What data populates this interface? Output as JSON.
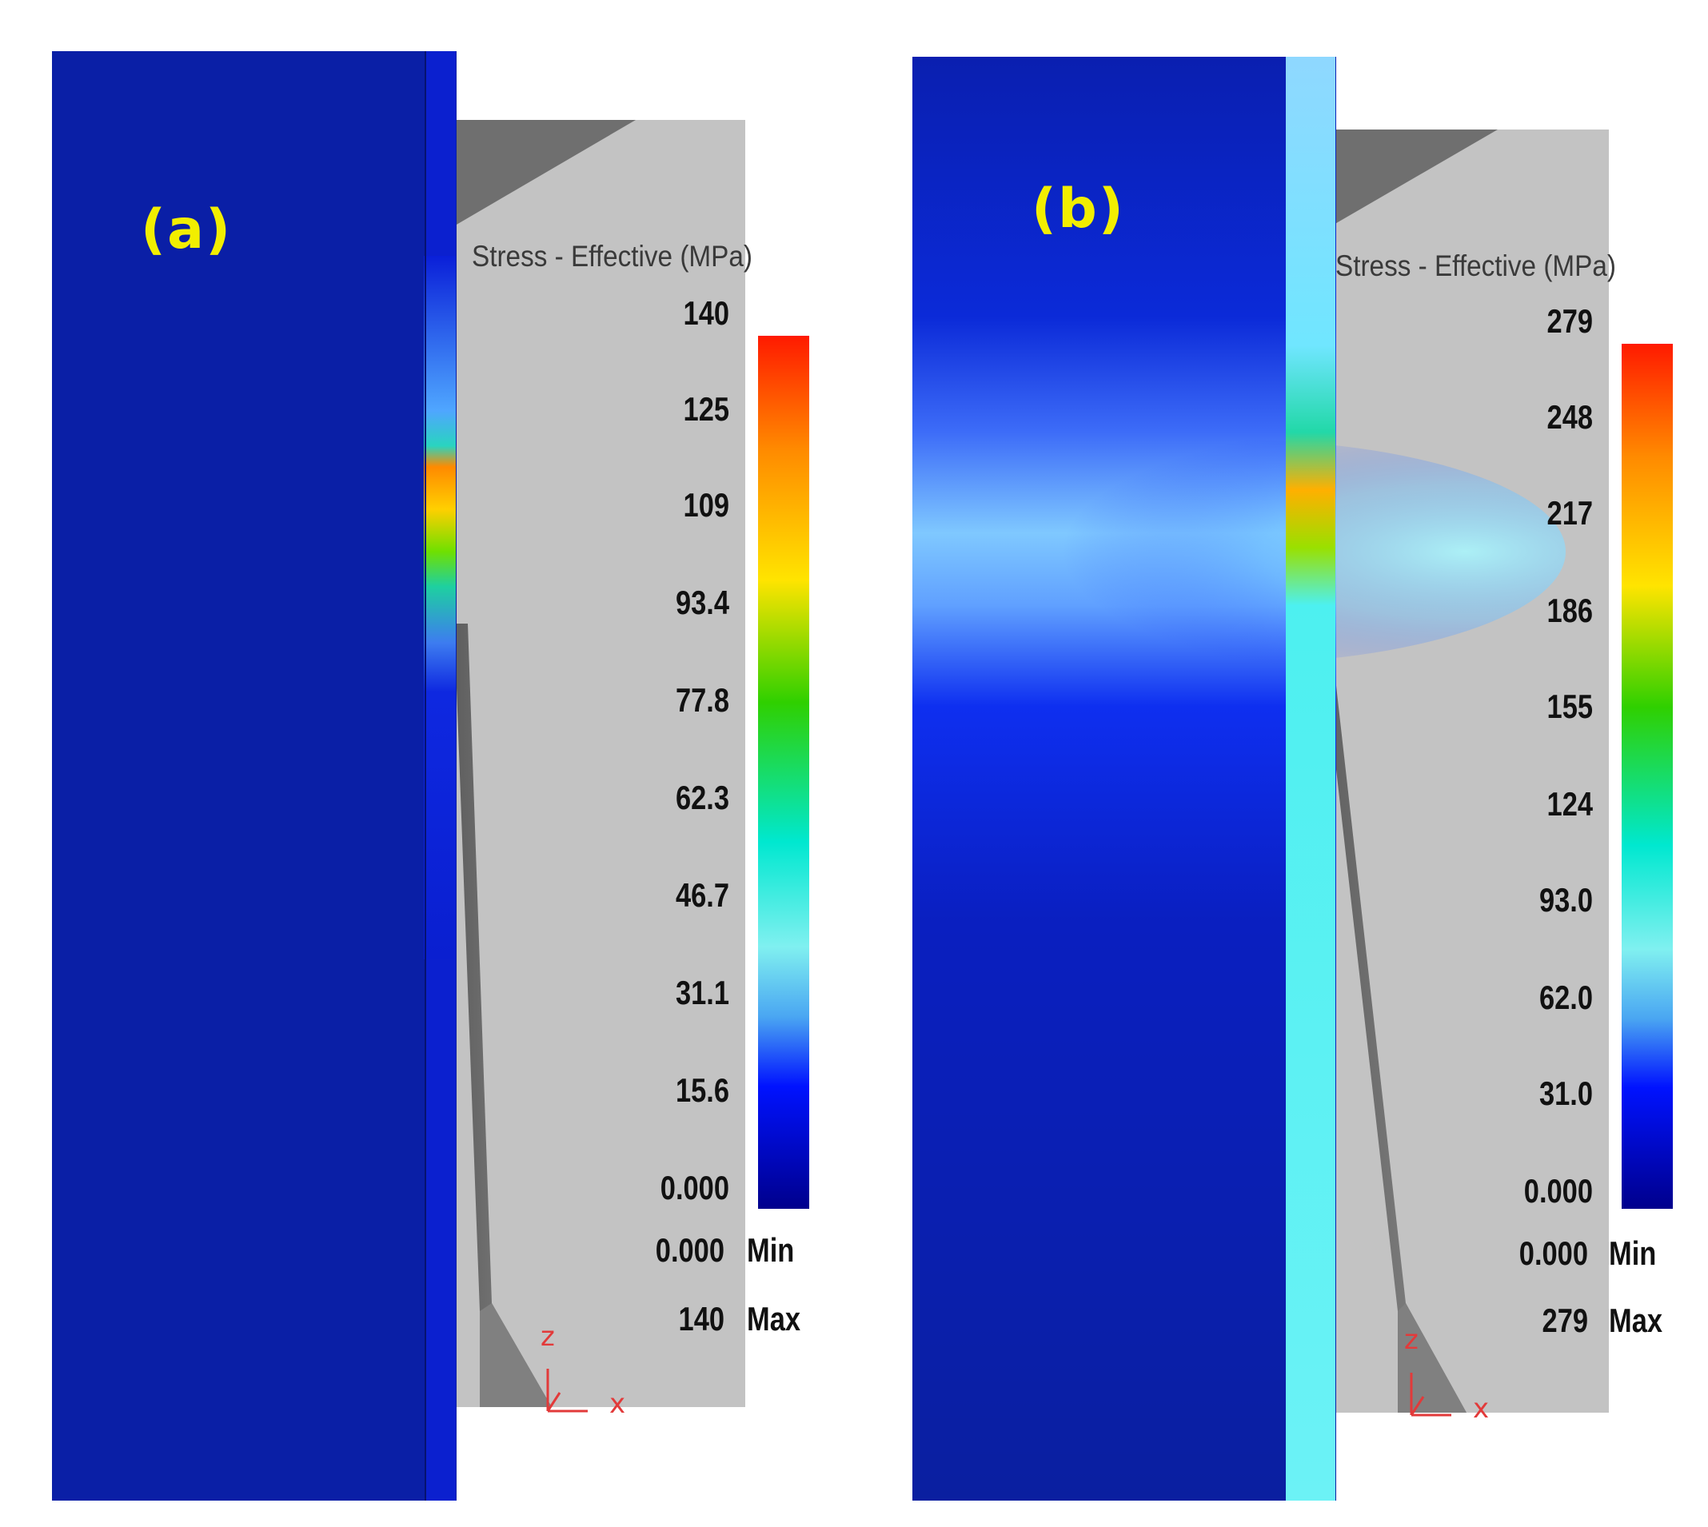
{
  "panels": [
    {
      "label": "(a)",
      "legend_title": "Stress - Effective (MPa)",
      "scale_values": [
        "140",
        "125",
        "109",
        "93.4",
        "77.8",
        "62.3",
        "46.7",
        "31.1",
        "15.6",
        "0.000"
      ],
      "min_value": "0.000",
      "min_label": "Min",
      "max_value": "140",
      "max_label": "Max",
      "axis_z": "z",
      "axis_x": "x"
    },
    {
      "label": "(b)",
      "legend_title": "Stress - Effective (MPa)",
      "scale_values": [
        "279",
        "248",
        "217",
        "186",
        "155",
        "124",
        "93.0",
        "62.0",
        "31.0",
        "0.000"
      ],
      "min_value": "0.000",
      "min_label": "Min",
      "max_value": "279",
      "max_label": "Max",
      "axis_z": "z",
      "axis_x": "x"
    }
  ],
  "colors": {
    "workpiece": "#0a1fa6",
    "die_light": "#c3c3c3",
    "die_dark": "#737373",
    "label_yellow": "#f2ee00",
    "axis_red": "#e23a3a",
    "scale_top": "#ff0000",
    "scale_bottom": "#00008c"
  }
}
